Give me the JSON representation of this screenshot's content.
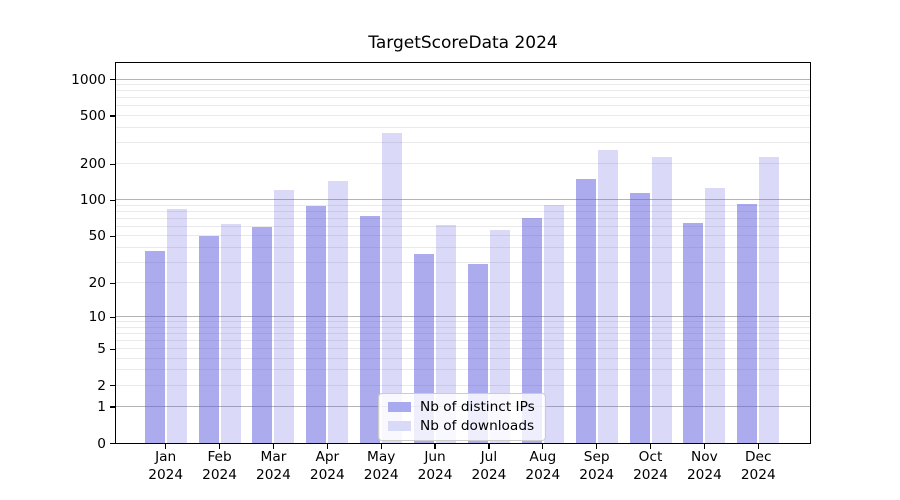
{
  "title": "TargetScoreData 2024",
  "chart_data": {
    "type": "bar",
    "title": "TargetScoreData 2024",
    "categories": [
      {
        "month": "Jan",
        "year": "2024"
      },
      {
        "month": "Feb",
        "year": "2024"
      },
      {
        "month": "Mar",
        "year": "2024"
      },
      {
        "month": "Apr",
        "year": "2024"
      },
      {
        "month": "May",
        "year": "2024"
      },
      {
        "month": "Jun",
        "year": "2024"
      },
      {
        "month": "Jul",
        "year": "2024"
      },
      {
        "month": "Aug",
        "year": "2024"
      },
      {
        "month": "Sep",
        "year": "2024"
      },
      {
        "month": "Oct",
        "year": "2024"
      },
      {
        "month": "Nov",
        "year": "2024"
      },
      {
        "month": "Dec",
        "year": "2024"
      }
    ],
    "series": [
      {
        "name": "Nb of distinct IPs",
        "fill": "rgba(87,87,222,0.50)",
        "legend_color": "#a9a9f0",
        "values": [
          37,
          50,
          59,
          89,
          74,
          35,
          29,
          70,
          148,
          114,
          64,
          93
        ]
      },
      {
        "name": "Nb of downloads",
        "fill": "rgba(87,87,222,0.22)",
        "legend_color": "#d9d9f8",
        "values": [
          84,
          63,
          122,
          143,
          360,
          62,
          56,
          90,
          258,
          225,
          126,
          225
        ]
      }
    ],
    "yscale": "log1p",
    "y_ticks": [
      0,
      1,
      2,
      5,
      10,
      20,
      50,
      100,
      200,
      500,
      1000
    ],
    "y_major_gridlines": [
      1,
      10,
      100,
      1000
    ],
    "ylim": [
      0,
      1400
    ],
    "xlabel": "",
    "ylabel": "",
    "grid": "both",
    "legend_position": "lower center",
    "grid_major_color": "#b4b4b4",
    "grid_minor_color": "#e9e9e9"
  }
}
